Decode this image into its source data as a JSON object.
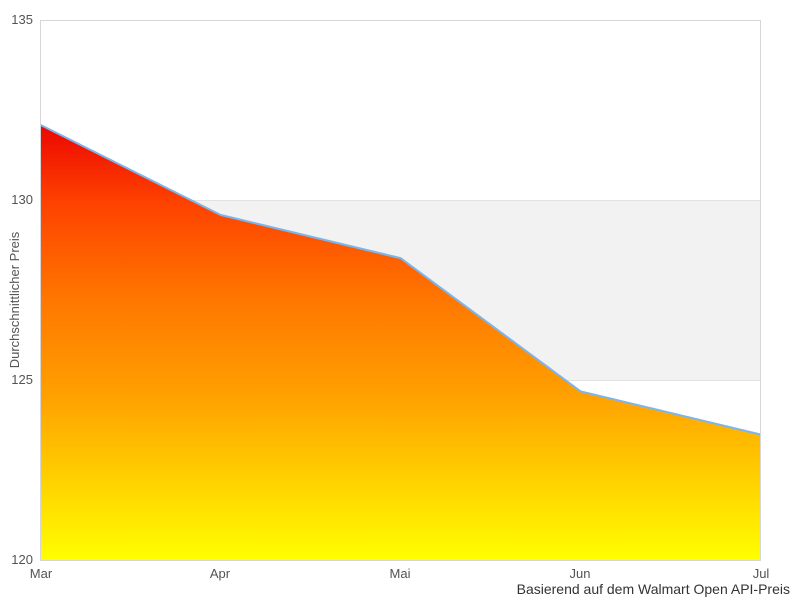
{
  "chart_data": {
    "type": "area",
    "categories": [
      "Mar",
      "Apr",
      "Mai",
      "Jun",
      "Jul"
    ],
    "values": [
      132.1,
      129.6,
      128.4,
      124.7,
      123.5
    ],
    "title": "",
    "xlabel": "",
    "ylabel": "Durchschnittlicher Preis",
    "caption": "Basierend auf dem Walmart Open API-Preis",
    "ylim": [
      120,
      135
    ],
    "yticks": [
      135,
      130,
      125,
      120
    ],
    "grid": false,
    "legend": false,
    "plot_band": {
      "from": 125,
      "to": 130,
      "color": "#f2f2f2"
    },
    "line_color": "#7cb5ec",
    "area_gradient": [
      {
        "offset": 0.0,
        "color": "#ec0600"
      },
      {
        "offset": 0.18,
        "color": "#fe4200"
      },
      {
        "offset": 0.42,
        "color": "#ff7b00"
      },
      {
        "offset": 0.62,
        "color": "#ffa000"
      },
      {
        "offset": 1.0,
        "color": "#ffff00"
      }
    ]
  },
  "colors": {
    "plot_border": "#d6d6d6",
    "band_edge": "#e2e2e2",
    "background": "#ffffff"
  }
}
